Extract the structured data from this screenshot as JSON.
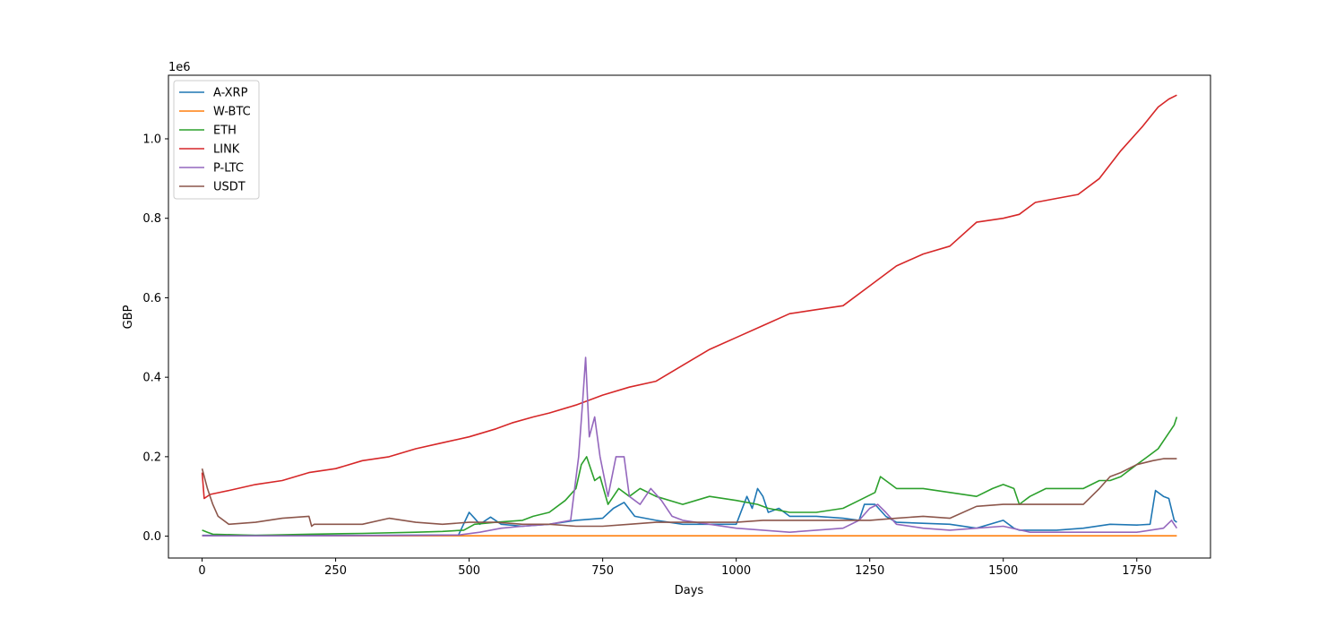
{
  "chart_data": {
    "type": "line",
    "xlabel": "Days",
    "ylabel": "GBP",
    "offset_label": "1e6",
    "xlim": [
      -63,
      1888
    ],
    "ylim": [
      -0.055,
      1.16
    ],
    "y_scale_factor": 1000000,
    "x_ticks": [
      0,
      250,
      500,
      750,
      1000,
      1250,
      1500,
      1750
    ],
    "x_tick_labels": [
      "0",
      "250",
      "500",
      "750",
      "1000",
      "1250",
      "1500",
      "1750"
    ],
    "y_ticks": [
      0.0,
      0.2,
      0.4,
      0.6,
      0.8,
      1.0
    ],
    "y_tick_labels": [
      "0.0",
      "0.2",
      "0.4",
      "0.6",
      "0.8",
      "1.0"
    ],
    "grid": false,
    "legend_position": "upper-left",
    "series": [
      {
        "name": "A-XRP",
        "color": "#1f77b4",
        "points": [
          [
            0,
            0.002
          ],
          [
            100,
            0.002
          ],
          [
            300,
            0.002
          ],
          [
            480,
            0.003
          ],
          [
            500,
            0.06
          ],
          [
            510,
            0.045
          ],
          [
            520,
            0.03
          ],
          [
            540,
            0.048
          ],
          [
            560,
            0.03
          ],
          [
            600,
            0.025
          ],
          [
            650,
            0.03
          ],
          [
            700,
            0.04
          ],
          [
            750,
            0.045
          ],
          [
            770,
            0.07
          ],
          [
            790,
            0.085
          ],
          [
            810,
            0.05
          ],
          [
            850,
            0.04
          ],
          [
            900,
            0.03
          ],
          [
            950,
            0.03
          ],
          [
            1000,
            0.03
          ],
          [
            1020,
            0.1
          ],
          [
            1030,
            0.07
          ],
          [
            1040,
            0.12
          ],
          [
            1050,
            0.1
          ],
          [
            1060,
            0.06
          ],
          [
            1080,
            0.07
          ],
          [
            1100,
            0.05
          ],
          [
            1150,
            0.05
          ],
          [
            1200,
            0.045
          ],
          [
            1230,
            0.04
          ],
          [
            1240,
            0.08
          ],
          [
            1260,
            0.08
          ],
          [
            1280,
            0.05
          ],
          [
            1300,
            0.035
          ],
          [
            1400,
            0.03
          ],
          [
            1450,
            0.02
          ],
          [
            1500,
            0.04
          ],
          [
            1520,
            0.02
          ],
          [
            1530,
            0.015
          ],
          [
            1600,
            0.015
          ],
          [
            1650,
            0.02
          ],
          [
            1700,
            0.03
          ],
          [
            1750,
            0.028
          ],
          [
            1775,
            0.03
          ],
          [
            1785,
            0.115
          ],
          [
            1800,
            0.1
          ],
          [
            1810,
            0.095
          ],
          [
            1820,
            0.04
          ],
          [
            1825,
            0.035
          ]
        ]
      },
      {
        "name": "W-BTC",
        "color": "#ff7f0e",
        "points": [
          [
            0,
            0.001
          ],
          [
            500,
            0.001
          ],
          [
            1000,
            0.001
          ],
          [
            1500,
            0.001
          ],
          [
            1825,
            0.001
          ]
        ]
      },
      {
        "name": "ETH",
        "color": "#2ca02c",
        "points": [
          [
            0,
            0.015
          ],
          [
            10,
            0.01
          ],
          [
            20,
            0.005
          ],
          [
            100,
            0.002
          ],
          [
            200,
            0.005
          ],
          [
            300,
            0.007
          ],
          [
            400,
            0.01
          ],
          [
            450,
            0.012
          ],
          [
            490,
            0.015
          ],
          [
            510,
            0.03
          ],
          [
            550,
            0.035
          ],
          [
            600,
            0.04
          ],
          [
            620,
            0.05
          ],
          [
            650,
            0.06
          ],
          [
            680,
            0.09
          ],
          [
            700,
            0.12
          ],
          [
            710,
            0.18
          ],
          [
            720,
            0.2
          ],
          [
            735,
            0.14
          ],
          [
            745,
            0.15
          ],
          [
            760,
            0.08
          ],
          [
            780,
            0.12
          ],
          [
            800,
            0.1
          ],
          [
            820,
            0.12
          ],
          [
            850,
            0.1
          ],
          [
            900,
            0.08
          ],
          [
            950,
            0.1
          ],
          [
            1000,
            0.09
          ],
          [
            1040,
            0.08
          ],
          [
            1060,
            0.07
          ],
          [
            1100,
            0.06
          ],
          [
            1150,
            0.06
          ],
          [
            1200,
            0.07
          ],
          [
            1230,
            0.09
          ],
          [
            1260,
            0.11
          ],
          [
            1270,
            0.15
          ],
          [
            1290,
            0.13
          ],
          [
            1300,
            0.12
          ],
          [
            1350,
            0.12
          ],
          [
            1400,
            0.11
          ],
          [
            1450,
            0.1
          ],
          [
            1480,
            0.12
          ],
          [
            1500,
            0.13
          ],
          [
            1520,
            0.12
          ],
          [
            1530,
            0.08
          ],
          [
            1550,
            0.1
          ],
          [
            1580,
            0.12
          ],
          [
            1620,
            0.12
          ],
          [
            1650,
            0.12
          ],
          [
            1680,
            0.14
          ],
          [
            1700,
            0.14
          ],
          [
            1720,
            0.15
          ],
          [
            1750,
            0.18
          ],
          [
            1770,
            0.2
          ],
          [
            1790,
            0.22
          ],
          [
            1810,
            0.26
          ],
          [
            1820,
            0.28
          ],
          [
            1825,
            0.3
          ]
        ]
      },
      {
        "name": "LINK",
        "color": "#d62728",
        "points": [
          [
            0,
            0.16
          ],
          [
            4,
            0.095
          ],
          [
            15,
            0.105
          ],
          [
            50,
            0.115
          ],
          [
            100,
            0.13
          ],
          [
            150,
            0.14
          ],
          [
            200,
            0.16
          ],
          [
            250,
            0.17
          ],
          [
            300,
            0.19
          ],
          [
            350,
            0.2
          ],
          [
            400,
            0.22
          ],
          [
            450,
            0.235
          ],
          [
            500,
            0.25
          ],
          [
            550,
            0.27
          ],
          [
            580,
            0.285
          ],
          [
            620,
            0.3
          ],
          [
            650,
            0.31
          ],
          [
            700,
            0.33
          ],
          [
            750,
            0.355
          ],
          [
            800,
            0.375
          ],
          [
            850,
            0.39
          ],
          [
            900,
            0.43
          ],
          [
            950,
            0.47
          ],
          [
            1000,
            0.5
          ],
          [
            1050,
            0.53
          ],
          [
            1100,
            0.56
          ],
          [
            1150,
            0.57
          ],
          [
            1200,
            0.58
          ],
          [
            1250,
            0.63
          ],
          [
            1300,
            0.68
          ],
          [
            1350,
            0.71
          ],
          [
            1400,
            0.73
          ],
          [
            1450,
            0.79
          ],
          [
            1500,
            0.8
          ],
          [
            1530,
            0.81
          ],
          [
            1560,
            0.84
          ],
          [
            1600,
            0.85
          ],
          [
            1640,
            0.86
          ],
          [
            1680,
            0.9
          ],
          [
            1720,
            0.97
          ],
          [
            1760,
            1.03
          ],
          [
            1790,
            1.08
          ],
          [
            1810,
            1.1
          ],
          [
            1825,
            1.11
          ]
        ]
      },
      {
        "name": "P-LTC",
        "color": "#9467bd",
        "points": [
          [
            0,
            0.001
          ],
          [
            200,
            0.001
          ],
          [
            400,
            0.002
          ],
          [
            480,
            0.003
          ],
          [
            520,
            0.01
          ],
          [
            560,
            0.02
          ],
          [
            600,
            0.025
          ],
          [
            650,
            0.03
          ],
          [
            690,
            0.04
          ],
          [
            705,
            0.2
          ],
          [
            712,
            0.33
          ],
          [
            718,
            0.45
          ],
          [
            725,
            0.25
          ],
          [
            735,
            0.3
          ],
          [
            745,
            0.2
          ],
          [
            760,
            0.1
          ],
          [
            775,
            0.2
          ],
          [
            790,
            0.2
          ],
          [
            800,
            0.1
          ],
          [
            820,
            0.08
          ],
          [
            840,
            0.12
          ],
          [
            860,
            0.09
          ],
          [
            880,
            0.05
          ],
          [
            900,
            0.04
          ],
          [
            950,
            0.03
          ],
          [
            1000,
            0.02
          ],
          [
            1050,
            0.015
          ],
          [
            1100,
            0.01
          ],
          [
            1150,
            0.015
          ],
          [
            1200,
            0.02
          ],
          [
            1230,
            0.04
          ],
          [
            1250,
            0.07
          ],
          [
            1265,
            0.08
          ],
          [
            1280,
            0.06
          ],
          [
            1300,
            0.03
          ],
          [
            1350,
            0.02
          ],
          [
            1400,
            0.015
          ],
          [
            1450,
            0.02
          ],
          [
            1500,
            0.025
          ],
          [
            1550,
            0.01
          ],
          [
            1600,
            0.01
          ],
          [
            1700,
            0.01
          ],
          [
            1750,
            0.01
          ],
          [
            1800,
            0.02
          ],
          [
            1815,
            0.04
          ],
          [
            1825,
            0.02
          ]
        ]
      },
      {
        "name": "USDT",
        "color": "#8c564b",
        "points": [
          [
            0,
            0.17
          ],
          [
            10,
            0.12
          ],
          [
            20,
            0.08
          ],
          [
            30,
            0.05
          ],
          [
            50,
            0.03
          ],
          [
            100,
            0.035
          ],
          [
            150,
            0.045
          ],
          [
            200,
            0.05
          ],
          [
            205,
            0.025
          ],
          [
            210,
            0.03
          ],
          [
            250,
            0.03
          ],
          [
            300,
            0.03
          ],
          [
            350,
            0.045
          ],
          [
            400,
            0.035
          ],
          [
            450,
            0.03
          ],
          [
            500,
            0.035
          ],
          [
            550,
            0.035
          ],
          [
            600,
            0.03
          ],
          [
            650,
            0.03
          ],
          [
            700,
            0.025
          ],
          [
            750,
            0.025
          ],
          [
            800,
            0.03
          ],
          [
            850,
            0.035
          ],
          [
            900,
            0.035
          ],
          [
            950,
            0.035
          ],
          [
            1000,
            0.035
          ],
          [
            1050,
            0.04
          ],
          [
            1100,
            0.04
          ],
          [
            1150,
            0.04
          ],
          [
            1200,
            0.04
          ],
          [
            1250,
            0.04
          ],
          [
            1300,
            0.045
          ],
          [
            1350,
            0.05
          ],
          [
            1400,
            0.045
          ],
          [
            1450,
            0.075
          ],
          [
            1500,
            0.08
          ],
          [
            1550,
            0.08
          ],
          [
            1600,
            0.08
          ],
          [
            1650,
            0.08
          ],
          [
            1680,
            0.12
          ],
          [
            1700,
            0.15
          ],
          [
            1720,
            0.16
          ],
          [
            1750,
            0.18
          ],
          [
            1780,
            0.19
          ],
          [
            1800,
            0.195
          ],
          [
            1825,
            0.195
          ]
        ]
      }
    ]
  }
}
